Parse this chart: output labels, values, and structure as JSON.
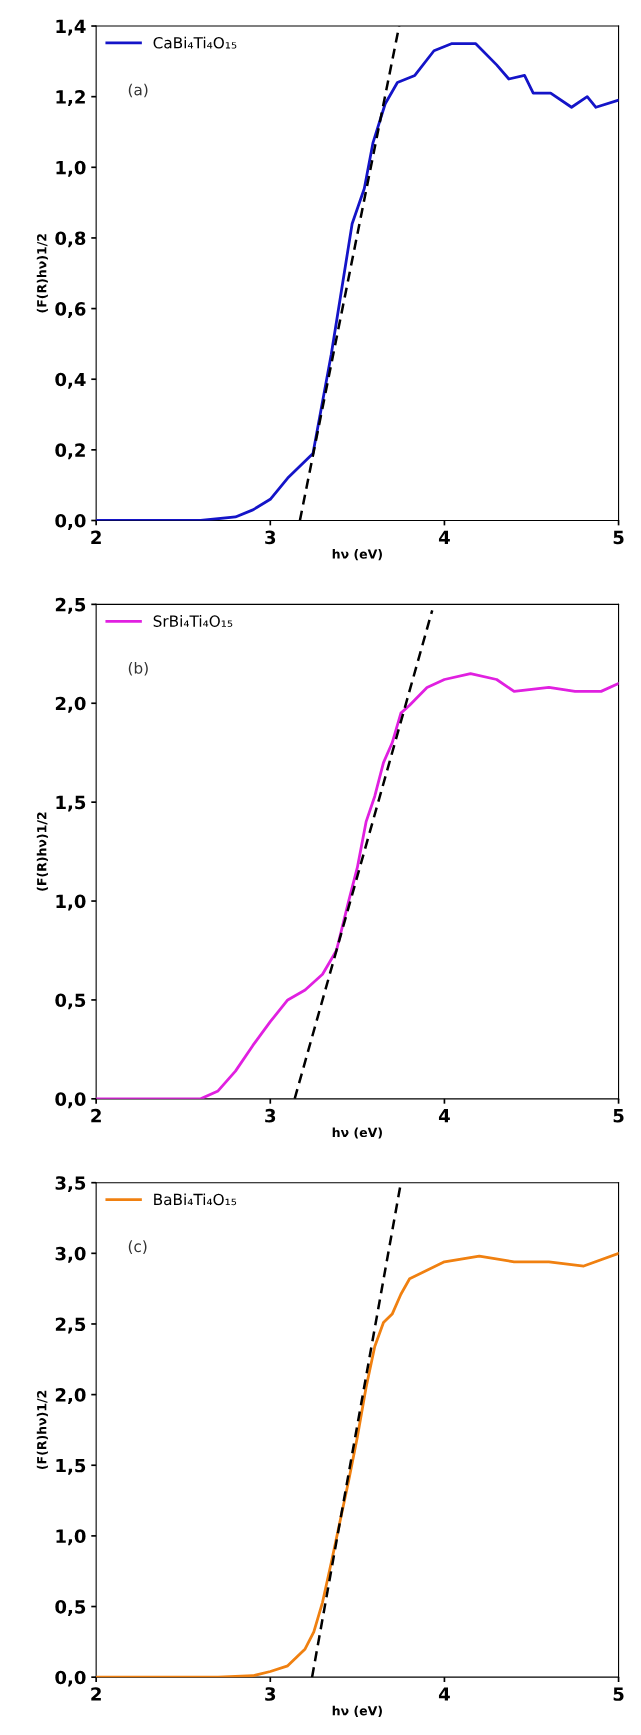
{
  "chart_data": [
    {
      "type": "line",
      "xlabel": "hν (eV)",
      "ylabel": "(F(R)hν)1/2",
      "annotations": [
        "(a)"
      ],
      "legend": "top left",
      "grid": false,
      "xlim": [
        2,
        5
      ],
      "xticks": [
        2,
        3,
        4,
        5
      ],
      "ylim": [
        0,
        1.4
      ],
      "yticks": [
        {
          "value": 0,
          "label": "0,0"
        },
        {
          "value": 0.2,
          "label": "0,2"
        },
        {
          "value": 0.4,
          "label": "0,4"
        },
        {
          "value": 0.6,
          "label": "0,6"
        },
        {
          "value": 0.8,
          "label": "0,8"
        },
        {
          "value": 1.0,
          "label": "1,0"
        },
        {
          "value": 1.2,
          "label": "1,2"
        },
        {
          "value": 1.4,
          "label": "1,4"
        }
      ],
      "series": [
        {
          "name": "CaBi₄Ti₄O₁₅",
          "color": "#1414c8",
          "x": [
            2.0,
            2.6,
            2.8,
            2.9,
            3.0,
            3.1,
            3.245,
            3.35,
            3.47,
            3.54,
            3.59,
            3.66,
            3.73,
            3.83,
            3.94,
            4.04,
            4.18,
            4.3,
            4.37,
            4.46,
            4.51,
            4.61,
            4.73,
            4.82,
            4.87,
            5.0
          ],
          "values": [
            0,
            0,
            0.01,
            0.03,
            0.06,
            0.12,
            0.19,
            0.47,
            0.84,
            0.94,
            1.07,
            1.18,
            1.24,
            1.26,
            1.33,
            1.35,
            1.35,
            1.29,
            1.25,
            1.26,
            1.21,
            1.21,
            1.17,
            1.2,
            1.17,
            1.19
          ]
        },
        {
          "type": "line",
          "color": "#000000",
          "line_style": "dashed",
          "x": [
            3.17,
            3.74
          ],
          "values": [
            0,
            1.4
          ]
        }
      ]
    },
    {
      "type": "line",
      "xlabel": "hν (eV)",
      "ylabel": "(F(R)hν)1/2",
      "annotations": [
        "(b)"
      ],
      "legend": "top left",
      "grid": false,
      "xlim": [
        2,
        5
      ],
      "xticks": [
        2,
        3,
        4,
        5
      ],
      "ylim": [
        0,
        2.5
      ],
      "yticks": [
        {
          "value": 0,
          "label": "0,0"
        },
        {
          "value": 0.5,
          "label": "0,5"
        },
        {
          "value": 1.0,
          "label": "1,0"
        },
        {
          "value": 1.5,
          "label": "1,5"
        },
        {
          "value": 2.0,
          "label": "2,0"
        },
        {
          "value": 2.5,
          "label": "2,5"
        }
      ],
      "series": [
        {
          "name": "SrBi₄Ti₄O₁₅",
          "color": "#e020e0",
          "x": [
            2.0,
            2.6,
            2.7,
            2.8,
            2.9,
            3.0,
            3.1,
            3.2,
            3.3,
            3.38,
            3.45,
            3.5,
            3.55,
            3.6,
            3.65,
            3.7,
            3.75,
            3.8,
            3.9,
            4.0,
            4.15,
            4.3,
            4.4,
            4.6,
            4.75,
            4.9,
            5.0
          ],
          "values": [
            0,
            0,
            0.04,
            0.14,
            0.27,
            0.39,
            0.5,
            0.55,
            0.63,
            0.75,
            1.0,
            1.17,
            1.4,
            1.53,
            1.7,
            1.8,
            1.95,
            1.99,
            2.08,
            2.12,
            2.15,
            2.12,
            2.06,
            2.08,
            2.06,
            2.06,
            2.1
          ]
        },
        {
          "type": "line",
          "color": "#000000",
          "line_style": "dashed",
          "x": [
            3.14,
            3.93
          ],
          "values": [
            0,
            2.47
          ]
        }
      ]
    },
    {
      "type": "line",
      "xlabel": "hν (eV)",
      "ylabel": "(F(R)hν)1/2",
      "annotations": [
        "(c)"
      ],
      "legend": "top left",
      "grid": false,
      "xlim": [
        2,
        5
      ],
      "xticks": [
        2,
        3,
        4,
        5
      ],
      "ylim": [
        0,
        3.5
      ],
      "yticks": [
        {
          "value": 0,
          "label": "0,0"
        },
        {
          "value": 0.5,
          "label": "0,5"
        },
        {
          "value": 1.0,
          "label": "1,0"
        },
        {
          "value": 1.5,
          "label": "1,5"
        },
        {
          "value": 2.0,
          "label": "2,0"
        },
        {
          "value": 2.5,
          "label": "2,5"
        },
        {
          "value": 3.0,
          "label": "3,0"
        },
        {
          "value": 3.5,
          "label": "3,5"
        }
      ],
      "series": [
        {
          "name": "BaBi₄Ti₄O₁₅",
          "color": "#f08010",
          "x": [
            2.0,
            2.7,
            2.9,
            3.0,
            3.1,
            3.2,
            3.25,
            3.3,
            3.35,
            3.4,
            3.45,
            3.5,
            3.55,
            3.6,
            3.65,
            3.7,
            3.75,
            3.8,
            3.9,
            4.0,
            4.2,
            4.4,
            4.6,
            4.8,
            5.0
          ],
          "values": [
            0,
            0,
            0.01,
            0.04,
            0.08,
            0.2,
            0.32,
            0.53,
            0.81,
            1.1,
            1.39,
            1.7,
            2.05,
            2.34,
            2.51,
            2.57,
            2.71,
            2.82,
            2.88,
            2.94,
            2.98,
            2.94,
            2.94,
            2.91,
            3.0
          ]
        },
        {
          "type": "line",
          "color": "#000000",
          "line_style": "dashed",
          "x": [
            3.24,
            3.75
          ],
          "values": [
            0,
            3.5
          ]
        }
      ]
    }
  ]
}
